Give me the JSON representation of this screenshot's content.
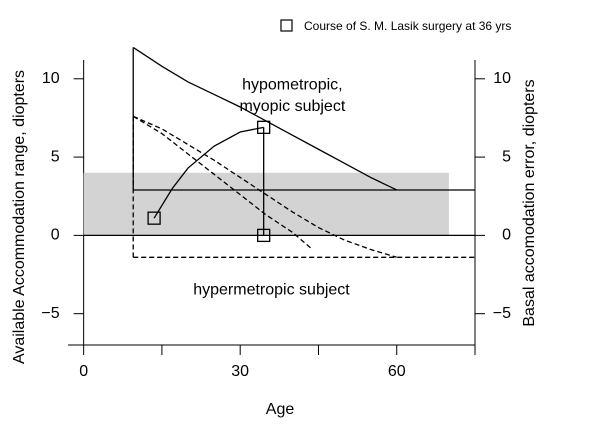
{
  "chart_data": {
    "type": "line",
    "x_label": "Age",
    "y_label": "Available Accommodation range, diopters",
    "y2_label": "Basal accomodation error, diopters",
    "annotations": [
      {
        "text": "hypometropic,",
        "x": 40,
        "y": 9.6
      },
      {
        "text": "myopic subject",
        "x": 40,
        "y": 8.2
      },
      {
        "text": "hypermetropic subject",
        "x": 36,
        "y": -3.5
      }
    ],
    "xlim": [
      -3,
      75
    ],
    "xticks": [
      0,
      30,
      60
    ],
    "xminor_ticks": [
      15,
      45,
      75
    ],
    "ylim": [
      -7,
      11.2
    ],
    "yticks": [
      {
        "value": -5,
        "label": "−5"
      },
      0,
      5,
      10
    ],
    "y2lim": [
      -7,
      11.2
    ],
    "y2ticks": [
      {
        "value": -5,
        "label": "−5"
      },
      0,
      5,
      10
    ],
    "legend": "top-right",
    "series": [
      {
        "style": "area",
        "color": "#d3d3d3",
        "x": [
          0,
          70
        ],
        "values": [
          4,
          4
        ]
      },
      {
        "style": "solid",
        "color": "#000000",
        "x": [
          0,
          75
        ],
        "values": [
          0,
          0
        ]
      },
      {
        "style": "solid",
        "color": "#000000",
        "x": [
          9.5,
          15,
          20,
          25,
          30,
          35,
          40,
          45,
          50,
          55,
          60
        ],
        "values": [
          12,
          10.8,
          9.8,
          9.0,
          8.2,
          7.3,
          6.4,
          5.5,
          4.6,
          3.7,
          2.9
        ]
      },
      {
        "style": "solid",
        "color": "#000000",
        "x": [
          9.5,
          9.5
        ],
        "values": [
          12,
          2.9
        ]
      },
      {
        "style": "solid",
        "color": "#000000",
        "x": [
          9.5,
          75
        ],
        "values": [
          2.9,
          2.9
        ]
      },
      {
        "style": "dash",
        "color": "#000000",
        "x": [
          9.5,
          15,
          20,
          25,
          30,
          35,
          40,
          43.5
        ],
        "values": [
          7.6,
          6.5,
          5.2,
          3.9,
          2.6,
          1.3,
          0.2,
          -0.8
        ]
      },
      {
        "style": "dash",
        "color": "#000000",
        "x": [
          9.5,
          15,
          20,
          25,
          30,
          35,
          40,
          45,
          50,
          55,
          60
        ],
        "values": [
          7.6,
          6.8,
          5.8,
          4.8,
          3.7,
          2.6,
          1.5,
          0.5,
          -0.3,
          -0.9,
          -1.4
        ]
      },
      {
        "style": "dash",
        "color": "#000000",
        "x": [
          9.5,
          9.5
        ],
        "values": [
          7.6,
          -1.4
        ]
      },
      {
        "style": "dash",
        "color": "#000000",
        "x": [
          9.5,
          75
        ],
        "values": [
          -1.4,
          -1.4
        ]
      },
      {
        "style": "solid",
        "color": "#000000",
        "x": [
          13.5,
          17,
          20,
          25,
          30,
          34.5
        ],
        "values": [
          1.1,
          3.0,
          4.3,
          5.7,
          6.6,
          6.9
        ]
      },
      {
        "style": "solid",
        "color": "#000000",
        "x": [
          34.5,
          34.5
        ],
        "values": [
          6.9,
          0
        ]
      },
      {
        "name": "Course of S. M. Lasik surgery at 36 yrs",
        "style": "markers",
        "color": "#000000",
        "x": [
          13.5,
          34.5,
          34.5
        ],
        "values": [
          1.1,
          6.9,
          0
        ]
      }
    ]
  }
}
